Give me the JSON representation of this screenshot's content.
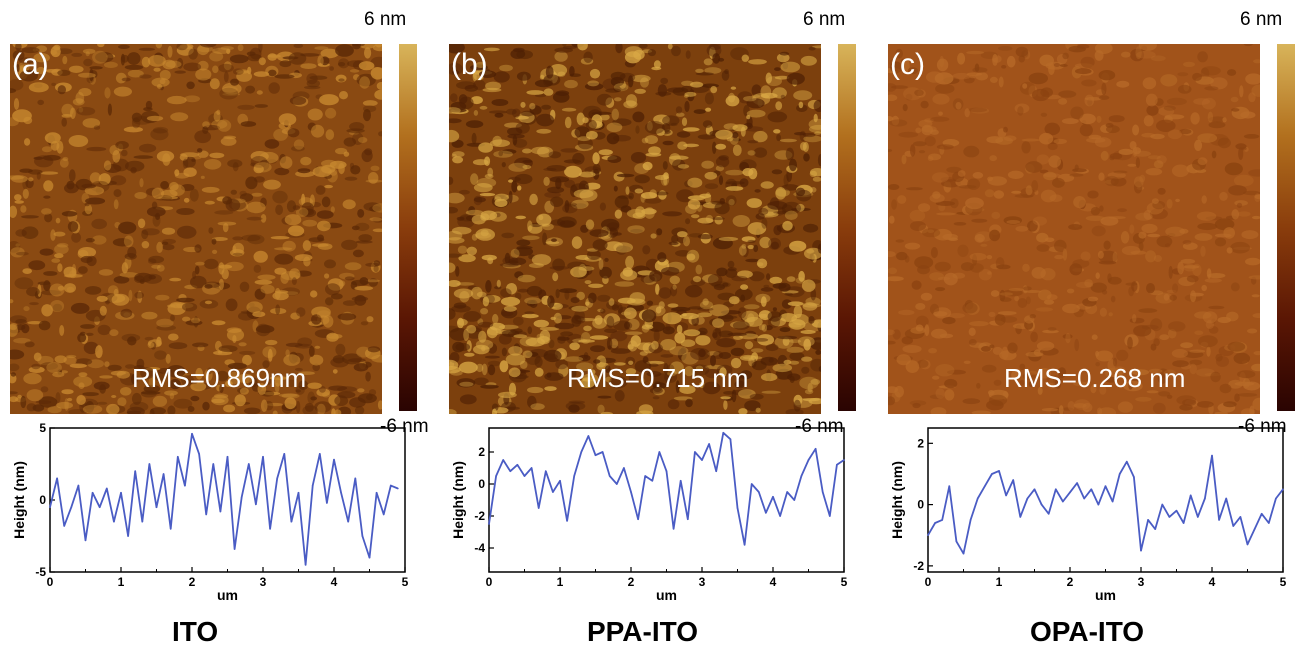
{
  "chart_data": [
    {
      "type": "line",
      "panel_label": "(a)",
      "rms": "RMS=0.869nm",
      "colorbar": {
        "max_label": "6 nm",
        "min_label": "-6 nm"
      },
      "ylabel": "Height (nm)",
      "xlabel": "um",
      "sample": "ITO",
      "xlim": [
        0,
        5
      ],
      "ylim": [
        -5,
        5
      ],
      "xticks": [
        "0",
        "1",
        "2",
        "3",
        "4",
        "5"
      ],
      "yticks": [
        {
          "v": 5,
          "t": "5"
        },
        {
          "v": 0,
          "t": "0"
        },
        {
          "v": -5,
          "t": "-5"
        }
      ],
      "x": [
        0,
        0.1,
        0.2,
        0.3,
        0.4,
        0.5,
        0.6,
        0.7,
        0.8,
        0.9,
        1.0,
        1.1,
        1.2,
        1.3,
        1.4,
        1.5,
        1.6,
        1.7,
        1.8,
        1.9,
        2.0,
        2.1,
        2.2,
        2.3,
        2.4,
        2.5,
        2.6,
        2.7,
        2.8,
        2.9,
        3.0,
        3.1,
        3.2,
        3.3,
        3.4,
        3.5,
        3.6,
        3.7,
        3.8,
        3.9,
        4.0,
        4.1,
        4.2,
        4.3,
        4.4,
        4.5,
        4.6,
        4.7,
        4.8,
        4.9
      ],
      "y": [
        -0.5,
        1.5,
        -1.8,
        -0.5,
        1.0,
        -2.8,
        0.5,
        -0.5,
        0.8,
        -1.5,
        0.5,
        -2.5,
        2.0,
        -1.5,
        2.5,
        -0.5,
        1.8,
        -2.0,
        3.0,
        1.0,
        4.6,
        3.2,
        -1.0,
        2.5,
        -0.8,
        3.0,
        -3.4,
        0.2,
        2.5,
        -0.3,
        3.0,
        -2.0,
        1.5,
        3.2,
        -1.5,
        0.5,
        -4.5,
        1.0,
        3.2,
        -0.2,
        2.8,
        0.5,
        -1.5,
        1.5,
        -2.5,
        -4.0,
        0.5,
        -1.0,
        1.0,
        0.8
      ]
    },
    {
      "type": "line",
      "panel_label": "(b)",
      "rms": "RMS=0.715 nm",
      "colorbar": {
        "max_label": "6 nm",
        "min_label": "-6 nm"
      },
      "ylabel": "Height (nm)",
      "xlabel": "um",
      "sample": "PPA-ITO",
      "xlim": [
        0,
        5
      ],
      "ylim": [
        -5.5,
        3.5
      ],
      "xticks": [
        "0",
        "1",
        "2",
        "3",
        "4",
        "5"
      ],
      "yticks": [
        {
          "v": 2,
          "t": "2"
        },
        {
          "v": 0,
          "t": "0"
        },
        {
          "v": -2,
          "t": "-2"
        },
        {
          "v": -4,
          "t": "-4"
        }
      ],
      "x": [
        0,
        0.1,
        0.2,
        0.3,
        0.4,
        0.5,
        0.6,
        0.7,
        0.8,
        0.9,
        1.0,
        1.1,
        1.2,
        1.3,
        1.4,
        1.5,
        1.6,
        1.7,
        1.8,
        1.9,
        2.0,
        2.1,
        2.2,
        2.3,
        2.4,
        2.5,
        2.6,
        2.7,
        2.8,
        2.9,
        3.0,
        3.1,
        3.2,
        3.3,
        3.4,
        3.5,
        3.6,
        3.7,
        3.8,
        3.9,
        4.0,
        4.1,
        4.2,
        4.3,
        4.4,
        4.5,
        4.6,
        4.7,
        4.8,
        4.9,
        5.0
      ],
      "y": [
        -2.5,
        0.5,
        1.5,
        0.8,
        1.2,
        0.5,
        1.0,
        -1.5,
        0.8,
        -0.5,
        0.2,
        -2.3,
        0.5,
        2.0,
        3.0,
        1.8,
        2.0,
        0.5,
        0.0,
        1.0,
        -0.5,
        -2.2,
        0.5,
        0.2,
        2.0,
        0.8,
        -2.8,
        0.2,
        -2.2,
        2.0,
        1.5,
        2.5,
        0.8,
        3.2,
        2.8,
        -1.5,
        -3.8,
        0.0,
        -0.5,
        -1.8,
        -0.8,
        -2.0,
        -0.5,
        -1.0,
        0.5,
        1.5,
        2.2,
        -0.5,
        -2.0,
        1.2,
        1.5
      ]
    },
    {
      "type": "line",
      "panel_label": "(c)",
      "rms": "RMS=0.268 nm",
      "colorbar": {
        "max_label": "6 nm",
        "min_label": "-6 nm"
      },
      "ylabel": "Height (nm)",
      "xlabel": "um",
      "sample": "OPA-ITO",
      "xlim": [
        0,
        5
      ],
      "ylim": [
        -2.2,
        2.5
      ],
      "xticks": [
        "0",
        "1",
        "2",
        "3",
        "4",
        "5"
      ],
      "yticks": [
        {
          "v": 2,
          "t": "2"
        },
        {
          "v": 0,
          "t": "0"
        },
        {
          "v": -2,
          "t": "-2"
        }
      ],
      "x": [
        0,
        0.1,
        0.2,
        0.3,
        0.4,
        0.5,
        0.6,
        0.7,
        0.8,
        0.9,
        1.0,
        1.1,
        1.2,
        1.3,
        1.4,
        1.5,
        1.6,
        1.7,
        1.8,
        1.9,
        2.0,
        2.1,
        2.2,
        2.3,
        2.4,
        2.5,
        2.6,
        2.7,
        2.8,
        2.9,
        3.0,
        3.1,
        3.2,
        3.3,
        3.4,
        3.5,
        3.6,
        3.7,
        3.8,
        3.9,
        4.0,
        4.1,
        4.2,
        4.3,
        4.4,
        4.5,
        4.6,
        4.7,
        4.8,
        4.9,
        5.0
      ],
      "y": [
        -1.0,
        -0.6,
        -0.5,
        0.6,
        -1.2,
        -1.6,
        -0.5,
        0.2,
        0.6,
        1.0,
        1.1,
        0.3,
        0.8,
        -0.4,
        0.2,
        0.5,
        0.0,
        -0.3,
        0.5,
        0.1,
        0.4,
        0.7,
        0.2,
        0.5,
        0.0,
        0.6,
        0.1,
        1.0,
        1.4,
        0.9,
        -1.5,
        -0.5,
        -0.8,
        0.0,
        -0.4,
        -0.2,
        -0.6,
        0.3,
        -0.4,
        0.2,
        1.6,
        -0.5,
        0.2,
        -0.7,
        -0.4,
        -1.3,
        -0.8,
        -0.3,
        -0.6,
        0.2,
        0.5
      ]
    }
  ]
}
